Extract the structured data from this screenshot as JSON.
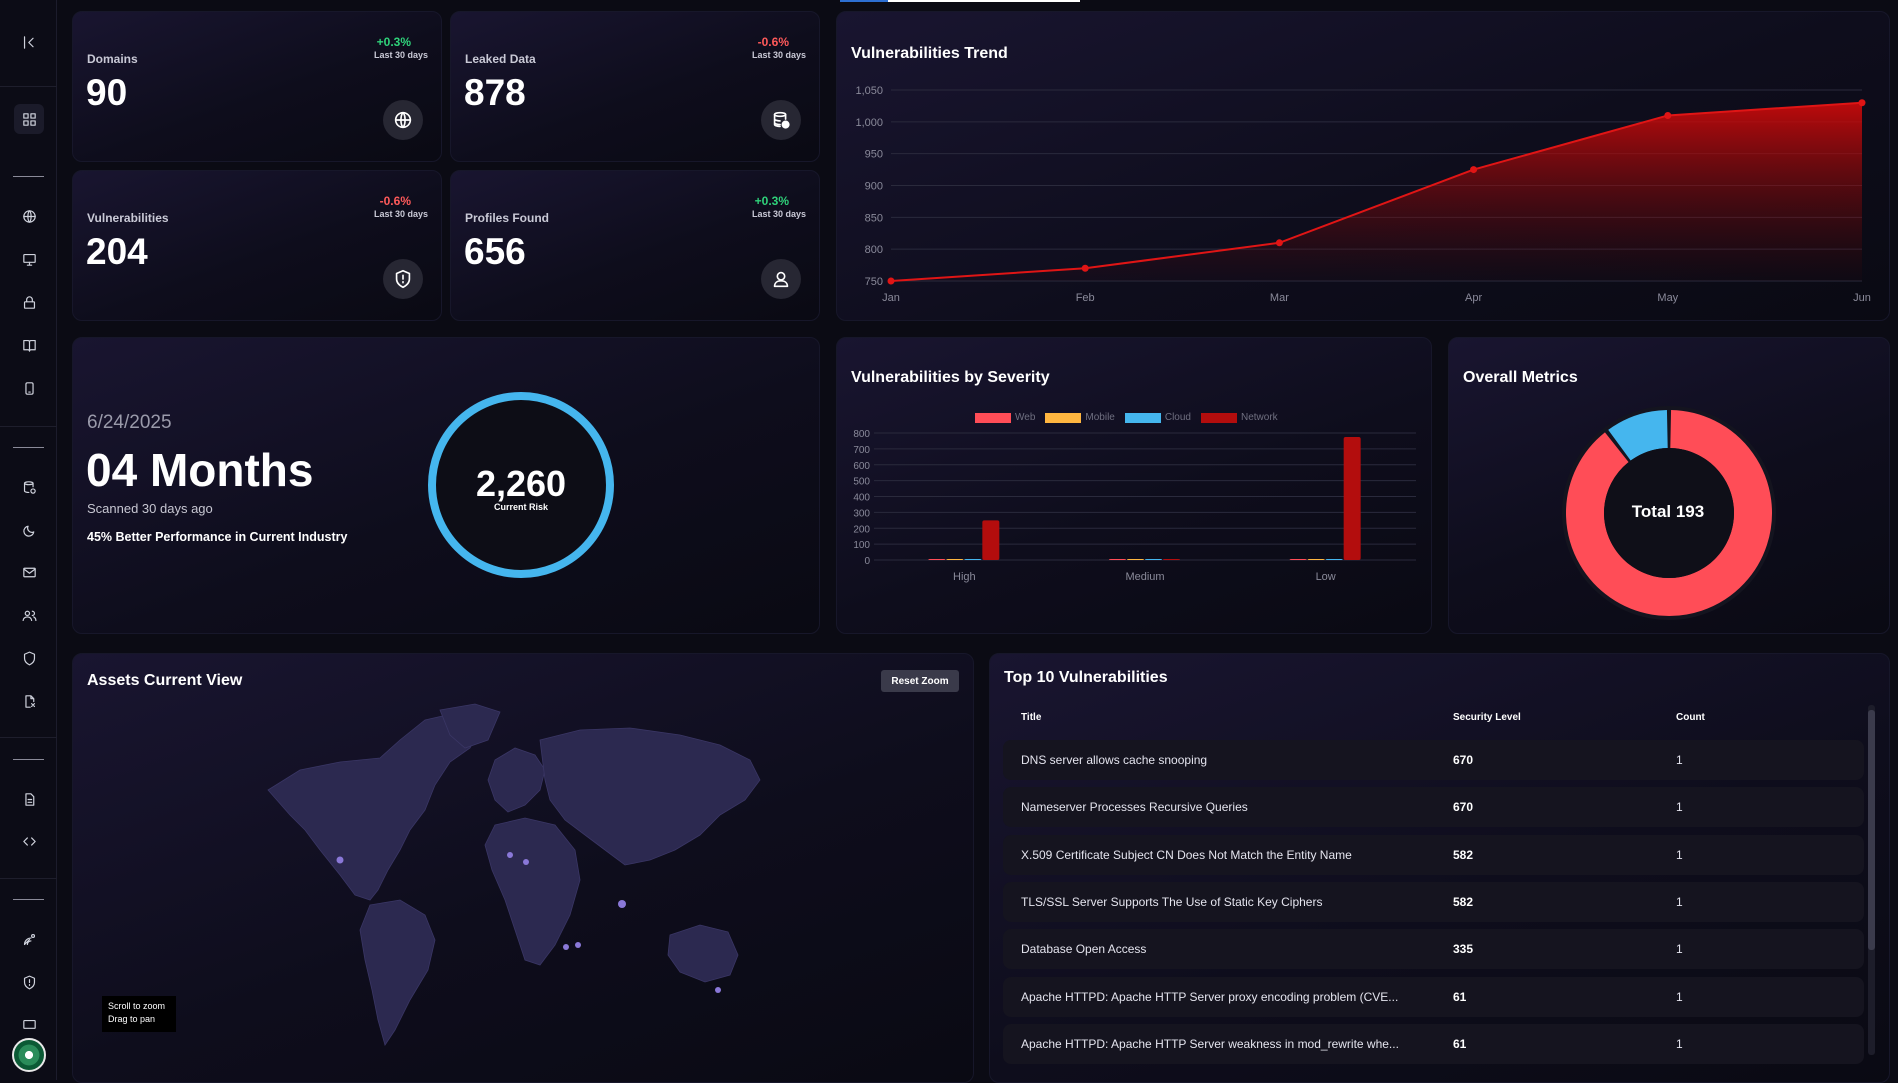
{
  "stats": [
    {
      "label": "Domains",
      "value": "90",
      "change": "+0.3%",
      "direction": "up",
      "period": "Last 30 days",
      "icon": "globe-icon"
    },
    {
      "label": "Leaked Data",
      "value": "878",
      "change": "-0.6%",
      "direction": "down",
      "period": "Last 30 days",
      "icon": "database-alert-icon"
    },
    {
      "label": "Vulnerabilities",
      "value": "204",
      "change": "-0.6%",
      "direction": "down",
      "period": "Last 30 days",
      "icon": "shield-alert-icon"
    },
    {
      "label": "Profiles Found",
      "value": "656",
      "change": "+0.3%",
      "direction": "up",
      "period": "Last 30 days",
      "icon": "user-icon"
    }
  ],
  "trend": {
    "title": "Vulnerabilities Trend",
    "chart_data": {
      "type": "area",
      "x": [
        "Jan",
        "Feb",
        "Mar",
        "Apr",
        "May",
        "Jun"
      ],
      "series": [
        {
          "values": [
            750,
            770,
            810,
            925,
            1010,
            1030
          ]
        }
      ],
      "ylim": [
        750,
        1050
      ],
      "yticks": [
        "750",
        "800",
        "850",
        "900",
        "950",
        "1,000",
        "1,050"
      ],
      "grid": true,
      "color": "#e01515"
    }
  },
  "risk": {
    "date": "6/24/2025",
    "months": "04 Months",
    "scanned": "Scanned 30 days ago",
    "performance": "45% Better Performance in Current Industry",
    "value": "2,260",
    "label": "Current Risk"
  },
  "severity": {
    "title": "Vulnerabilities by Severity",
    "chart_data": {
      "type": "bar",
      "categories": [
        "High",
        "Medium",
        "Low"
      ],
      "series": [
        {
          "name": "Web",
          "color": "#ff4d57",
          "values": [
            0,
            0,
            0
          ]
        },
        {
          "name": "Mobile",
          "color": "#ffb640",
          "values": [
            0,
            0,
            0
          ]
        },
        {
          "name": "Cloud",
          "color": "#45b6ee",
          "values": [
            0,
            0,
            0
          ]
        },
        {
          "name": "Network",
          "color": "#b30d0d",
          "values": [
            250,
            0,
            775
          ]
        }
      ],
      "ylim": [
        0,
        800
      ],
      "yticks": [
        "0",
        "100",
        "200",
        "300",
        "400",
        "500",
        "600",
        "700",
        "800"
      ],
      "legend": "top"
    }
  },
  "metrics": {
    "title": "Overall Metrics",
    "total_label": "Total 193",
    "chart_data": {
      "type": "pie",
      "series": [
        {
          "color": "#ff4d57",
          "value": 173
        },
        {
          "color": "#45b6ee",
          "value": 20
        }
      ]
    }
  },
  "map": {
    "title": "Assets Current View",
    "reset_label": "Reset Zoom",
    "hint_line1": "Scroll to zoom",
    "hint_line2": "Drag to pan"
  },
  "top10": {
    "title": "Top 10 Vulnerabilities",
    "headers": {
      "title": "Title",
      "level": "Security Level",
      "count": "Count"
    },
    "rows": [
      {
        "title": "DNS server allows cache snooping",
        "level": "670",
        "count": "1"
      },
      {
        "title": "Nameserver Processes Recursive Queries",
        "level": "670",
        "count": "1"
      },
      {
        "title": "X.509 Certificate Subject CN Does Not Match the Entity Name",
        "level": "582",
        "count": "1"
      },
      {
        "title": "TLS/SSL Server Supports The Use of Static Key Ciphers",
        "level": "582",
        "count": "1"
      },
      {
        "title": "Database Open Access",
        "level": "335",
        "count": "1"
      },
      {
        "title": "Apache HTTPD: Apache HTTP Server proxy encoding problem (CVE...",
        "level": "61",
        "count": "1"
      },
      {
        "title": "Apache HTTPD: Apache HTTP Server weakness in mod_rewrite whe...",
        "level": "61",
        "count": "1"
      }
    ]
  }
}
